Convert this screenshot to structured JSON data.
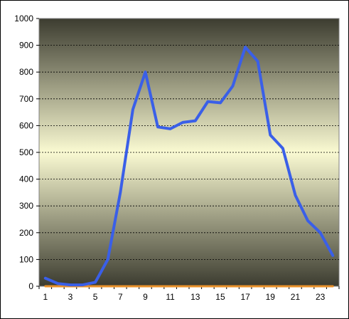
{
  "chart_data": {
    "type": "line",
    "title": "",
    "xlabel": "",
    "ylabel": "",
    "x": [
      1,
      2,
      3,
      4,
      5,
      6,
      7,
      8,
      9,
      10,
      11,
      12,
      13,
      14,
      15,
      16,
      17,
      18,
      19,
      20,
      21,
      22,
      23,
      24
    ],
    "x_tick_labels": [
      "1",
      "3",
      "5",
      "7",
      "9",
      "11",
      "13",
      "15",
      "17",
      "19",
      "21",
      "23"
    ],
    "y_tick_labels": [
      "0",
      "100",
      "200",
      "300",
      "400",
      "500",
      "600",
      "700",
      "800",
      "900",
      "1000"
    ],
    "ylim": [
      0,
      1000
    ],
    "grid": true,
    "legend": "none",
    "series": [
      {
        "color": "#3a5fe8",
        "values": [
          30,
          10,
          5,
          5,
          15,
          100,
          350,
          660,
          800,
          595,
          588,
          612,
          618,
          690,
          685,
          748,
          893,
          840,
          565,
          515,
          340,
          245,
          200,
          115
        ]
      },
      {
        "color": "#e8902a",
        "values": [
          0,
          0,
          0,
          0,
          0,
          0,
          0,
          0,
          0,
          0,
          0,
          0,
          0,
          0,
          0,
          0,
          0,
          0,
          0,
          0,
          0,
          0,
          0,
          0
        ]
      }
    ],
    "colors": {
      "plot_edge": "#3c3c30",
      "plot_center": "#fafad2",
      "gridline": "#000000"
    }
  }
}
